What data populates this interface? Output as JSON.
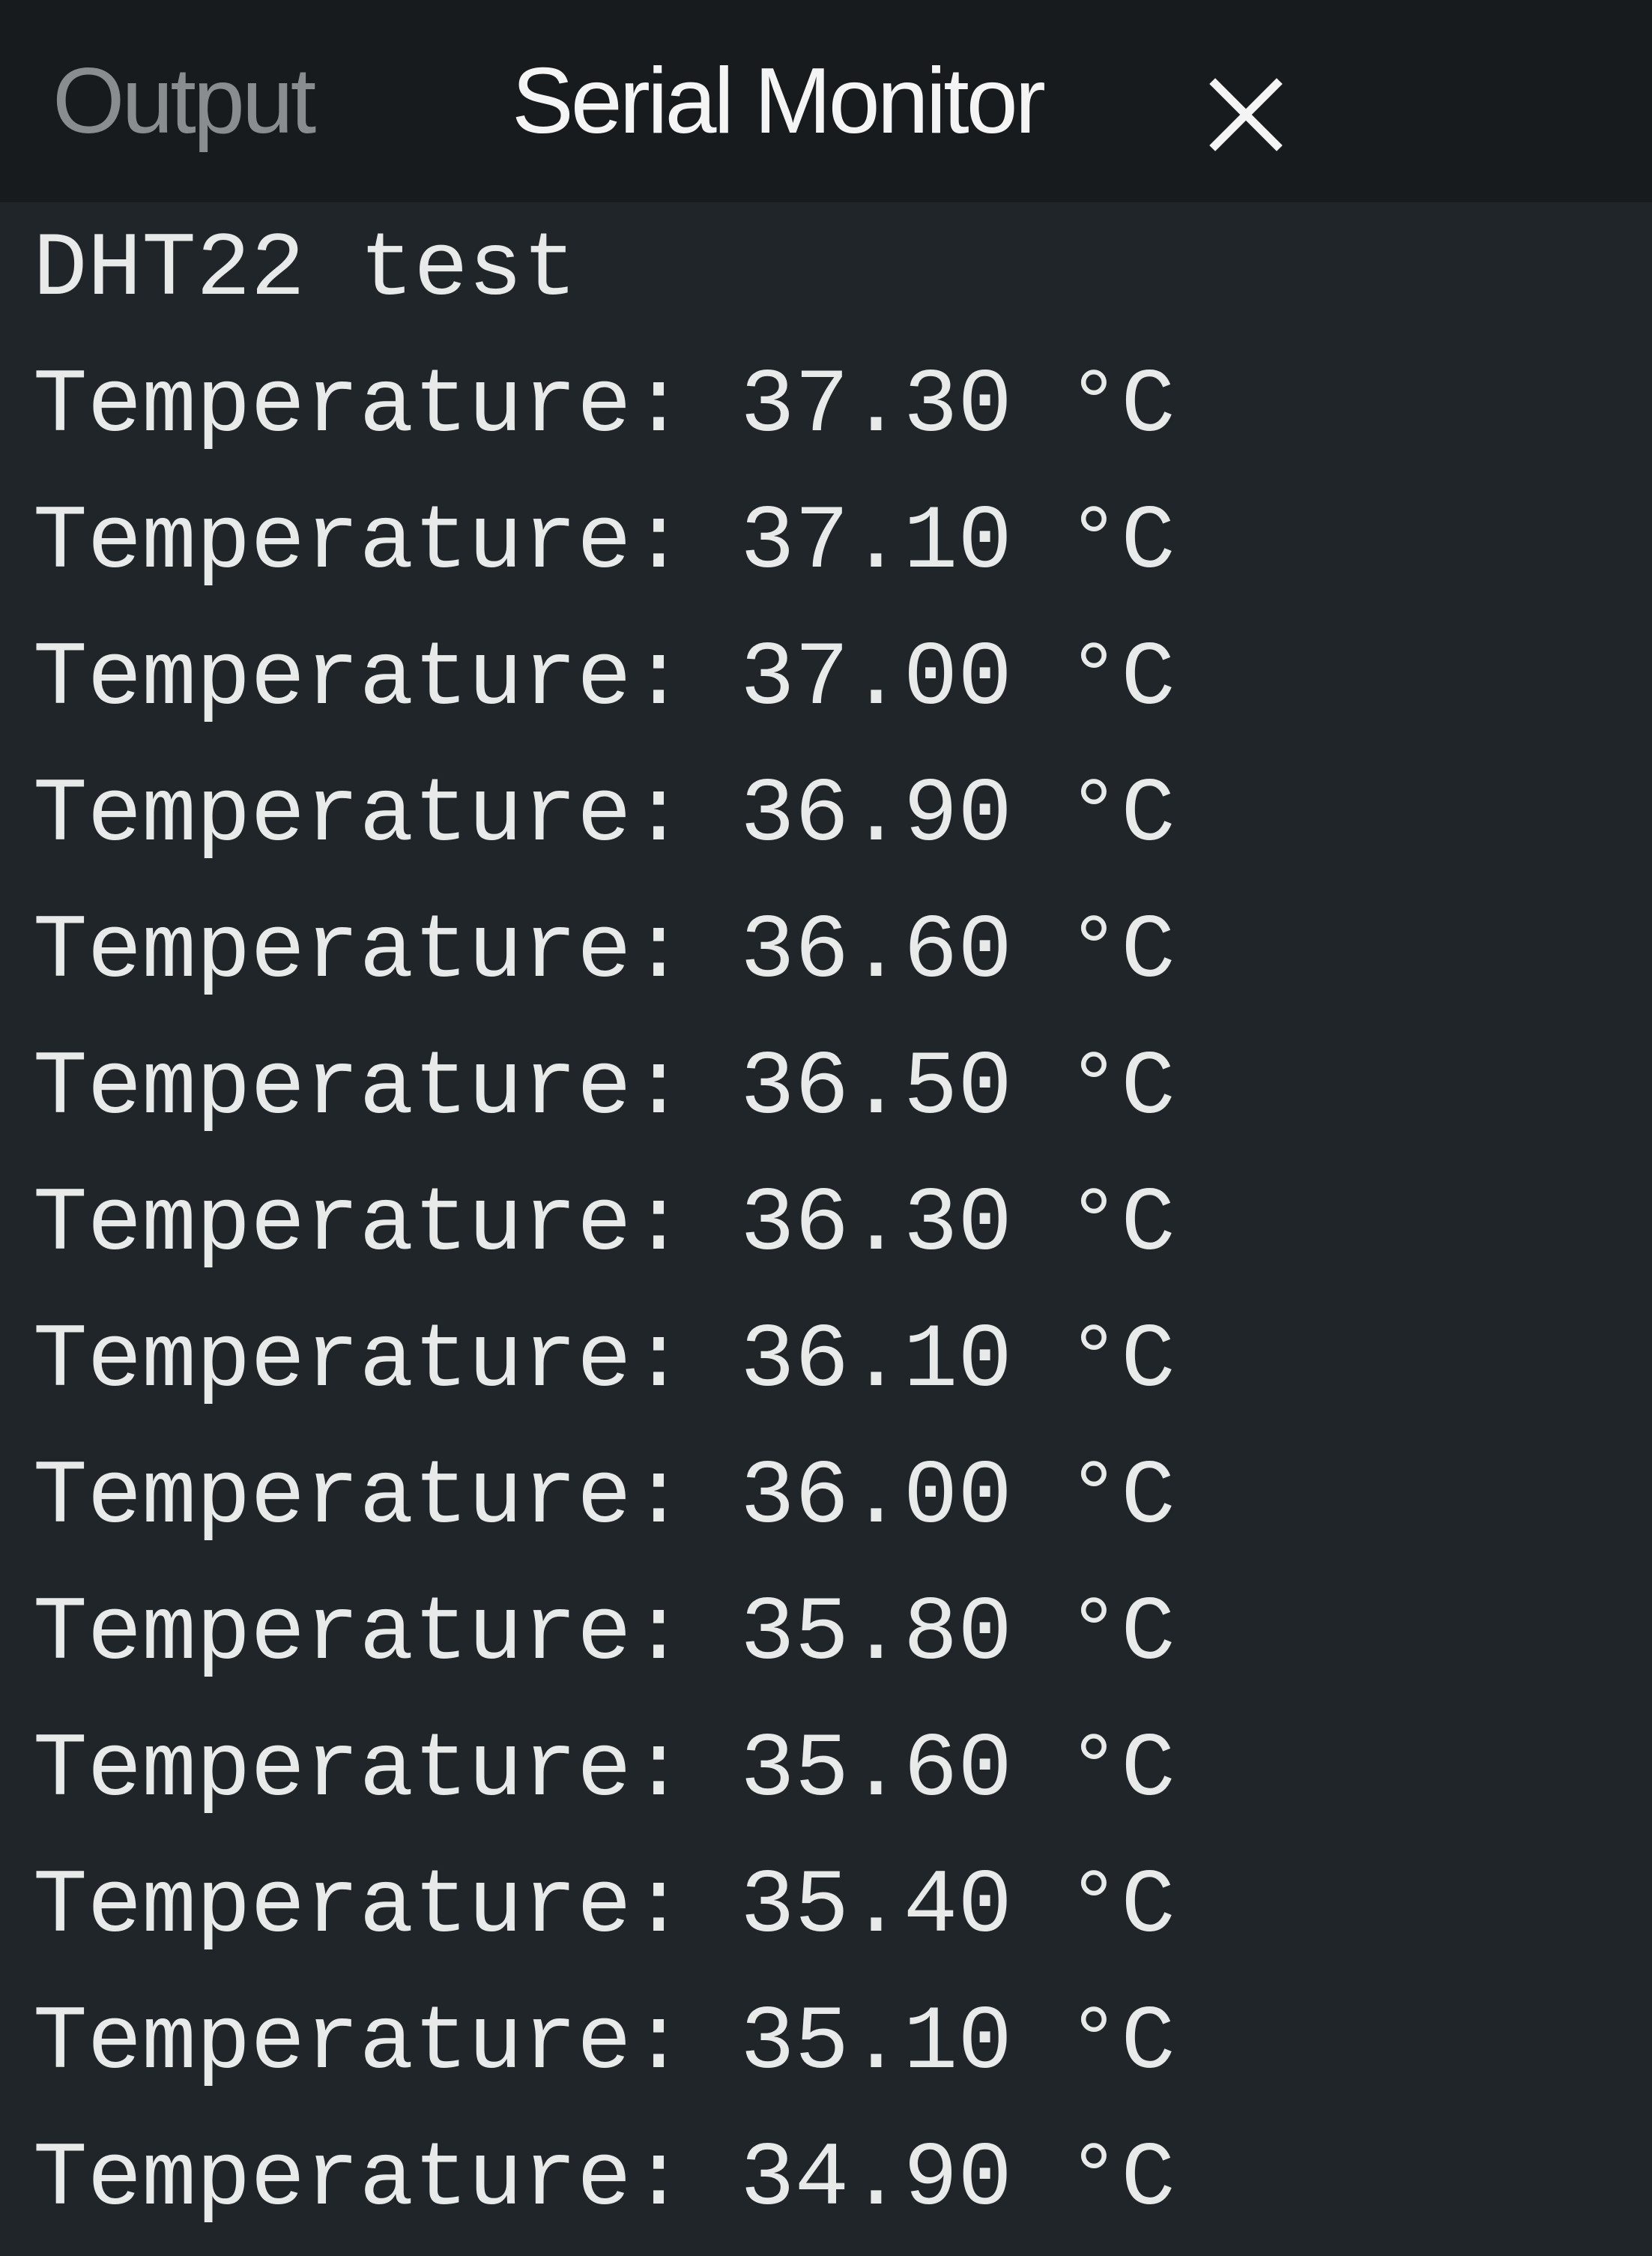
{
  "tabs": {
    "output_label": "Output",
    "serial_monitor_label": "Serial Monitor"
  },
  "icons": {
    "close": "close-icon"
  },
  "console": {
    "lines": [
      "DHT22 test",
      "Temperature: 37.30 °C",
      "Temperature: 37.10 °C",
      "Temperature: 37.00 °C",
      "Temperature: 36.90 °C",
      "Temperature: 36.60 °C",
      "Temperature: 36.50 °C",
      "Temperature: 36.30 °C",
      "Temperature: 36.10 °C",
      "Temperature: 36.00 °C",
      "Temperature: 35.80 °C",
      "Temperature: 35.60 °C",
      "Temperature: 35.40 °C",
      "Temperature: 35.10 °C",
      "Temperature: 34.90 °C"
    ]
  },
  "colors": {
    "tabbar_background": "#171b1e",
    "console_background": "#1f2528",
    "active_tab_text": "#f4f4f4",
    "inactive_tab_text": "#8a8d8f",
    "console_text": "#e8eae9"
  }
}
